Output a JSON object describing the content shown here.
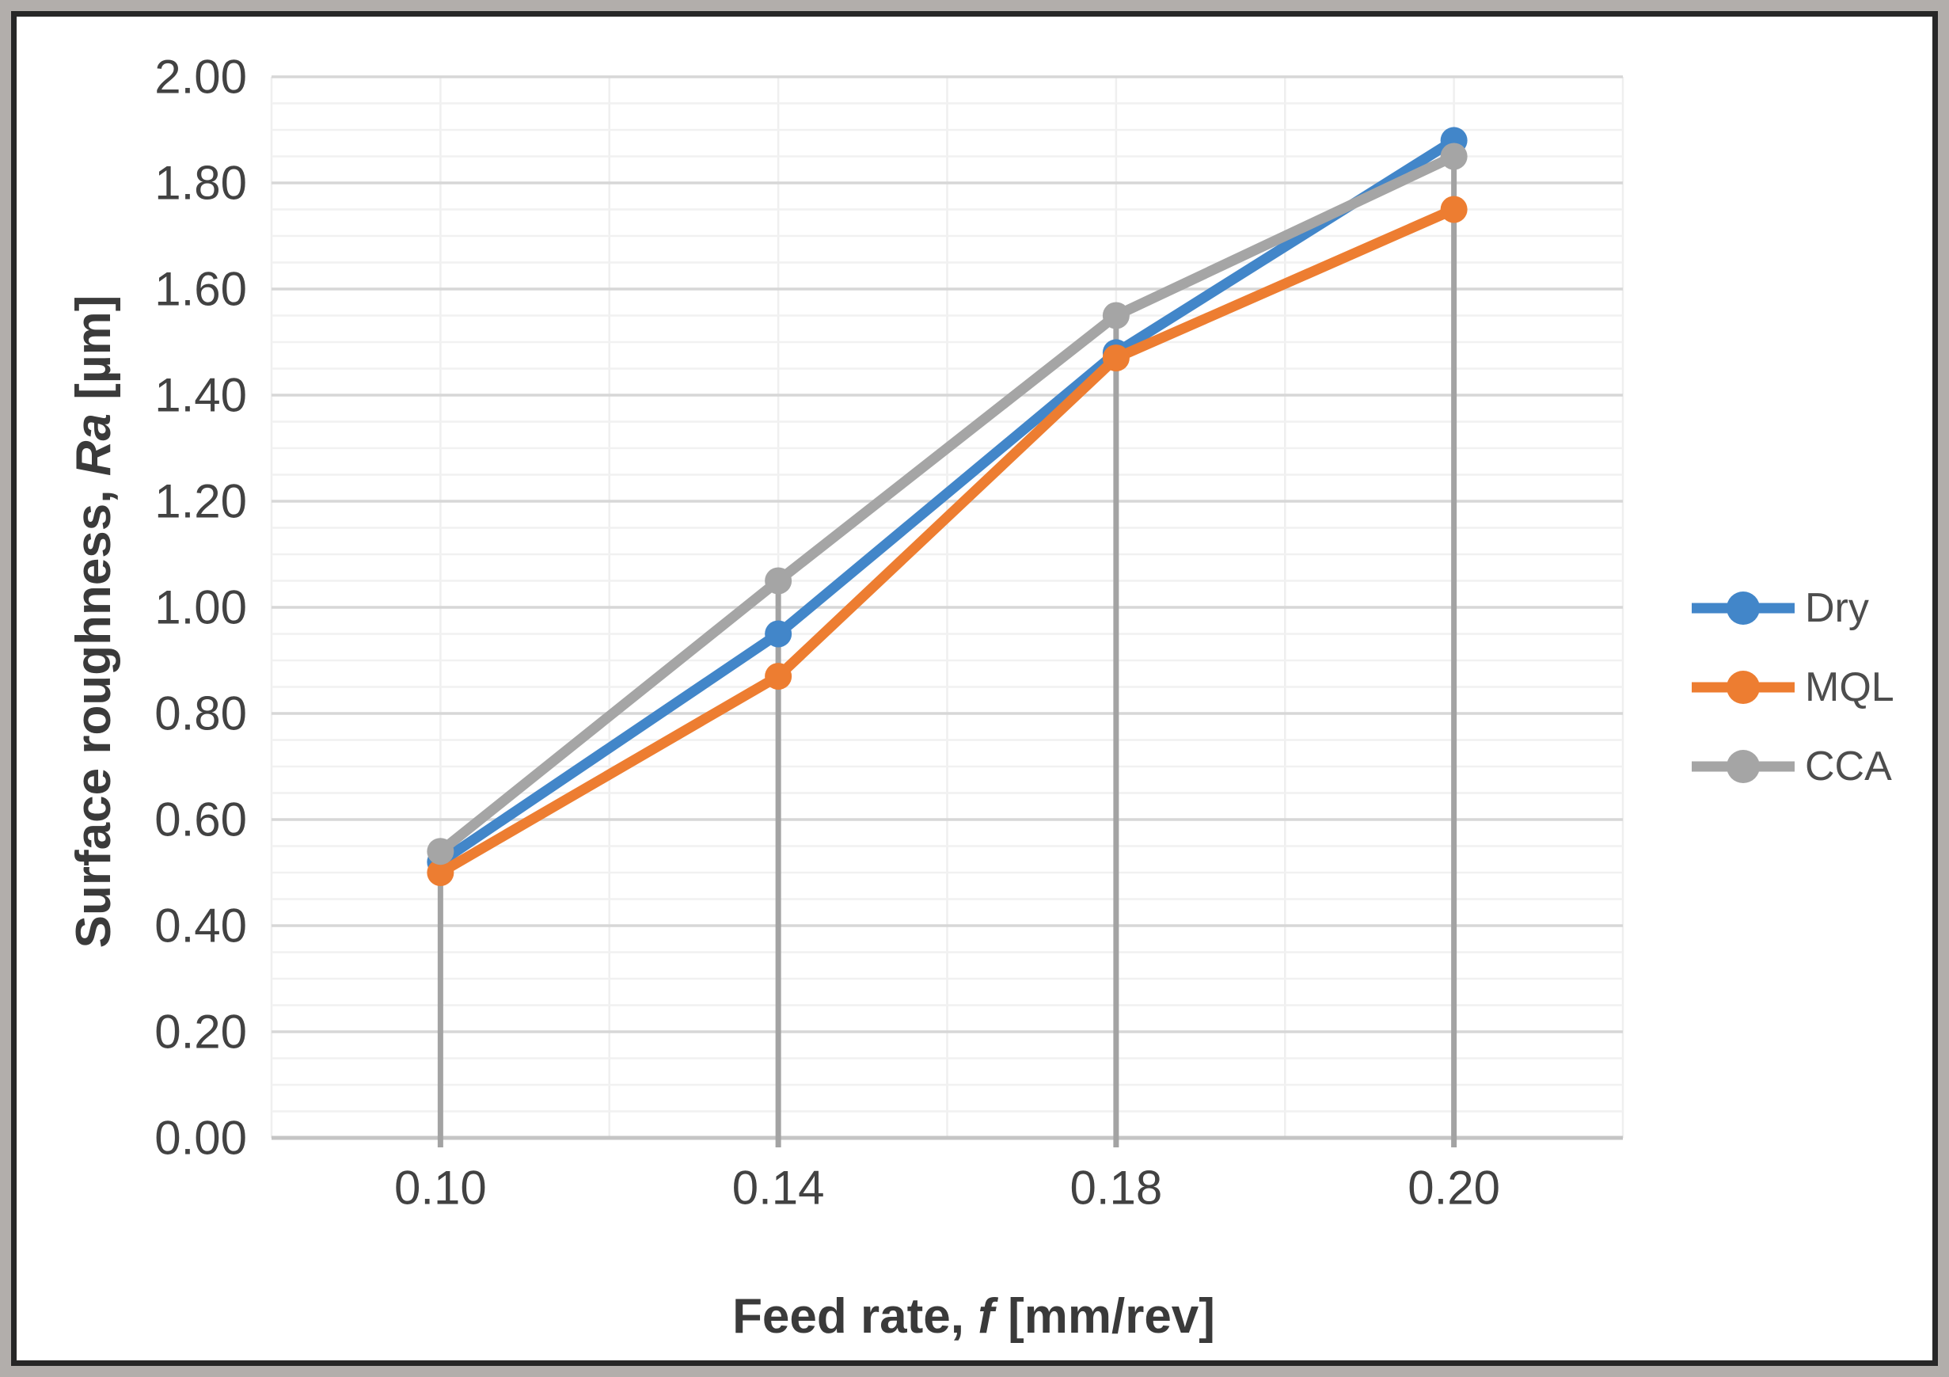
{
  "frame": {
    "outer_border_color": "#b2aeab",
    "inner_border_color": "#272727",
    "background_color": "#ffffff"
  },
  "chart_data": {
    "type": "line",
    "title": "",
    "xlabel": "Feed rate, f [mm/rev]",
    "ylabel": "Surface roughness, Ra [µm]",
    "xlabel_rich": [
      {
        "t": "Feed rate, ",
        "i": false
      },
      {
        "t": "f",
        "i": true
      },
      {
        "t": " [mm/rev]",
        "i": false
      }
    ],
    "ylabel_rich": [
      {
        "t": "Surface roughness, ",
        "i": false
      },
      {
        "t": "Ra",
        "i": true
      },
      {
        "t": " [µm]",
        "i": false
      }
    ],
    "categories": [
      "0.10",
      "0.14",
      "0.18",
      "0.20"
    ],
    "x_values": [
      0.1,
      0.14,
      0.18,
      0.2
    ],
    "series": [
      {
        "name": "Dry",
        "color": "#4286c9",
        "values": [
          0.52,
          0.95,
          1.48,
          1.88
        ]
      },
      {
        "name": "MQL",
        "color": "#ed7d31",
        "values": [
          0.5,
          0.87,
          1.47,
          1.75
        ]
      },
      {
        "name": "CCA",
        "color": "#a5a5a5",
        "values": [
          0.54,
          1.05,
          1.55,
          1.85
        ]
      }
    ],
    "y_axis": {
      "min": 0.0,
      "max": 2.0,
      "major_step": 0.2,
      "minor_step": 0.05,
      "tick_labels": [
        "0.00",
        "0.20",
        "0.40",
        "0.60",
        "0.80",
        "1.00",
        "1.20",
        "1.40",
        "1.60",
        "1.80",
        "2.00"
      ]
    },
    "legend": {
      "position": "right",
      "entries": [
        "Dry",
        "MQL",
        "CCA"
      ]
    },
    "grid": {
      "show_major_horizontal": true,
      "show_minor_horizontal": true,
      "show_vertical": true,
      "major_color": "#d7d7d7",
      "minor_color": "#f1f1f1",
      "vertical_color": "#efefef",
      "axis_line_color": "#c5c5c5",
      "drop_line_color": "#a3a3a3"
    }
  }
}
